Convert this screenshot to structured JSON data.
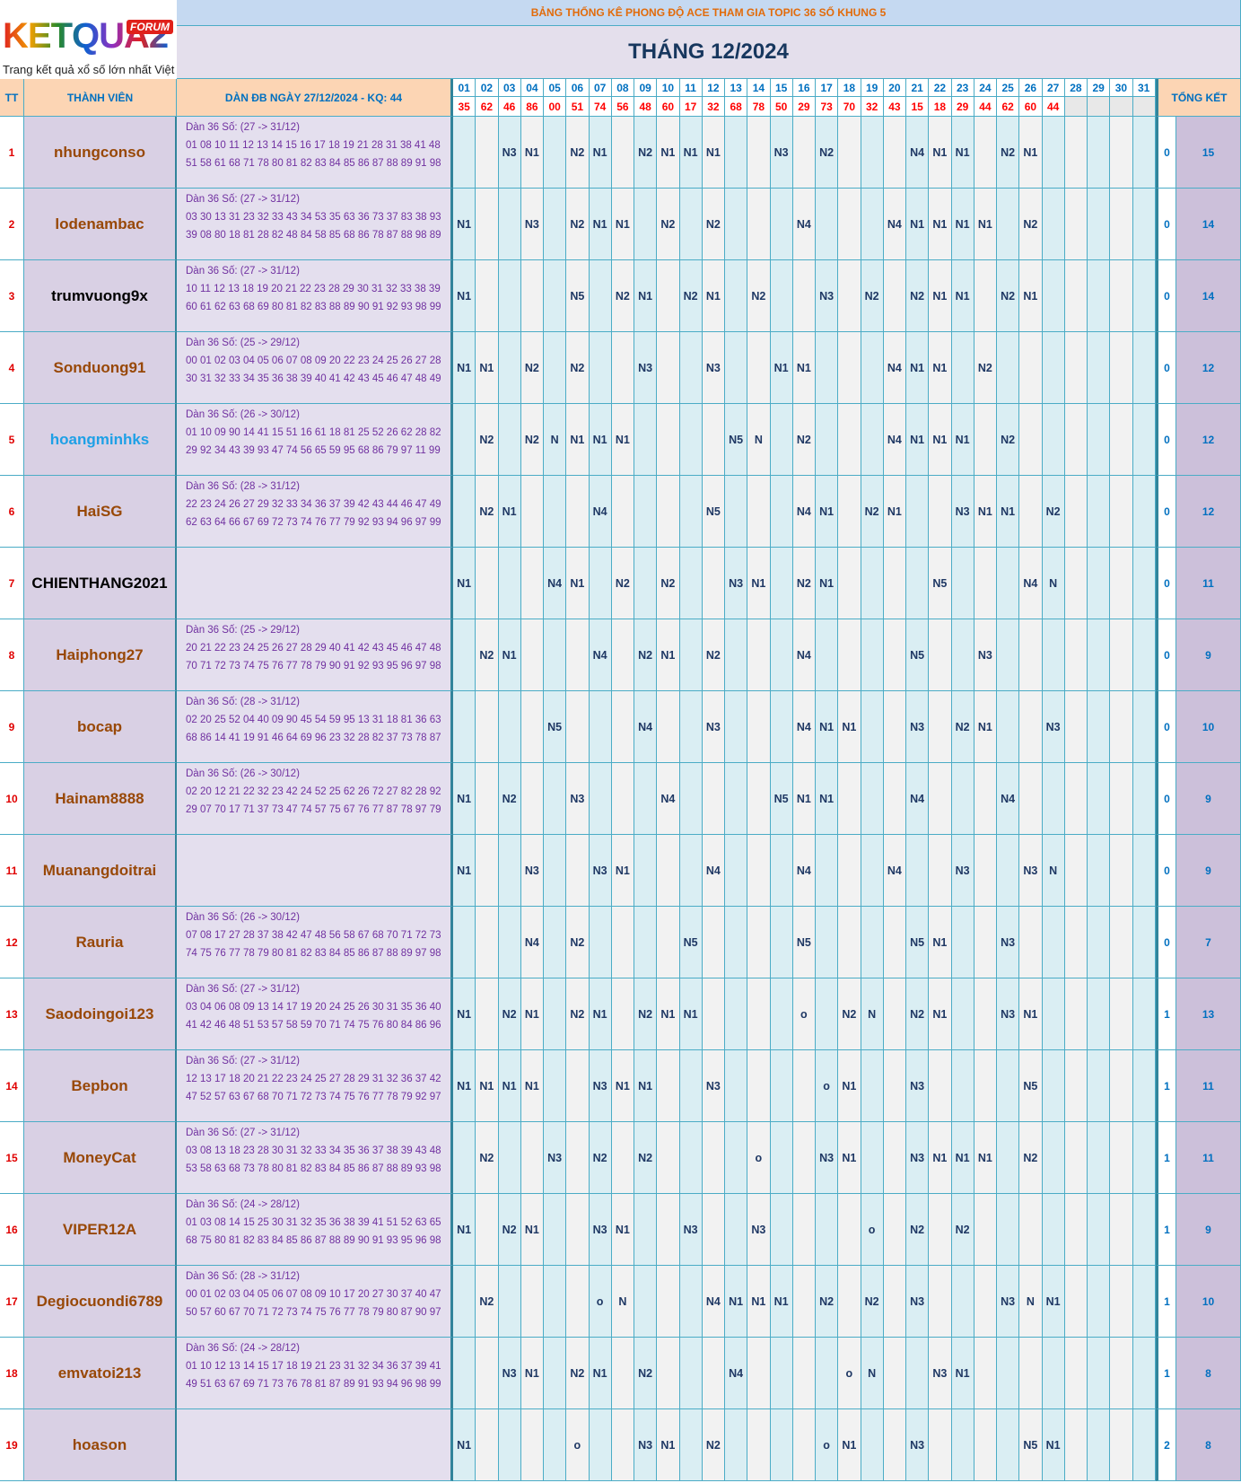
{
  "logo": {
    "text": "KETQUA2",
    "badge": "FORUM",
    "tagline": "Trang kết quả xổ số lớn nhất Việt Nam"
  },
  "header": {
    "title": "BẢNG THỐNG KÊ PHONG ĐỘ ACE THAM GIA TOPIC 36 SỐ KHUNG 5",
    "month": "THÁNG 12/2024"
  },
  "table": {
    "columns": {
      "tt": "TT",
      "member": "THÀNH VIÊN",
      "dan": "DÀN ĐB NGÀY 27/12/2024 - KQ: 44",
      "total": "TỔNG KẾT"
    },
    "days": [
      "01",
      "02",
      "03",
      "04",
      "05",
      "06",
      "07",
      "08",
      "09",
      "10",
      "11",
      "12",
      "13",
      "14",
      "15",
      "16",
      "17",
      "18",
      "19",
      "20",
      "21",
      "22",
      "23",
      "24",
      "25",
      "26",
      "27",
      "28",
      "29",
      "30",
      "31"
    ],
    "results": [
      "35",
      "62",
      "46",
      "86",
      "00",
      "51",
      "74",
      "56",
      "48",
      "60",
      "17",
      "32",
      "68",
      "78",
      "50",
      "29",
      "73",
      "70",
      "32",
      "43",
      "15",
      "18",
      "29",
      "44",
      "62",
      "60",
      "44",
      null,
      null,
      null,
      null
    ],
    "rows": [
      {
        "tt": 1,
        "name": "nhungconso",
        "color": "#984807",
        "dan_title": "Dàn 36 Số: (27 -> 31/12)",
        "dan_numbers": "01 08 10 11 12 13 14 15 16 17 18 19 21 28 31 38 41 48 51 58 61 68 71 78 80 81 82 83 84 85 86 87 88 89 91 98",
        "cells": [
          null,
          null,
          "N3",
          "N1",
          null,
          "N2",
          "N1",
          null,
          "N2",
          "N1",
          "N1",
          "N1",
          null,
          null,
          "N3",
          null,
          "N2",
          null,
          null,
          null,
          "N4",
          "N1",
          "N1",
          null,
          "N2",
          "N1",
          null,
          null,
          null,
          null,
          null
        ],
        "score": 0,
        "total": 15
      },
      {
        "tt": 2,
        "name": "lodenambac",
        "color": "#984807",
        "dan_title": "Dàn 36 Số: (27 -> 31/12)",
        "dan_numbers": "03 30 13 31 23 32 33 43 34 53 35 63 36 73 37 83 38 93 39 08 80 18 81 28 82 48 84 58 85 68 86 78 87 88 98 89",
        "cells": [
          "N1",
          null,
          null,
          "N3",
          null,
          "N2",
          "N1",
          "N1",
          null,
          "N2",
          null,
          "N2",
          null,
          null,
          null,
          "N4",
          null,
          null,
          null,
          "N4",
          "N1",
          "N1",
          "N1",
          "N1",
          null,
          "N2",
          null,
          null,
          null,
          null,
          null
        ],
        "score": 0,
        "total": 14
      },
      {
        "tt": 3,
        "name": "trumvuong9x",
        "color": "#000000",
        "dan_title": "Dàn 36 Số: (27 -> 31/12)",
        "dan_numbers": "10 11 12 13 18 19 20 21 22 23 28 29 30 31 32 33 38 39 60 61 62 63 68 69 80 81 82 83 88 89 90 91 92 93 98 99",
        "cells": [
          "N1",
          null,
          null,
          null,
          null,
          "N5",
          null,
          "N2",
          "N1",
          null,
          "N2",
          "N1",
          null,
          "N2",
          null,
          null,
          "N3",
          null,
          "N2",
          null,
          "N2",
          "N1",
          "N1",
          null,
          "N2",
          "N1",
          null,
          null,
          null,
          null,
          null
        ],
        "score": 0,
        "total": 14
      },
      {
        "tt": 4,
        "name": "Sonduong91",
        "color": "#984807",
        "dan_title": "Dàn 36 Số: (25 -> 29/12)",
        "dan_numbers": "00 01 02 03 04 05 06 07 08 09 20 22 23 24 25 26 27 28 30 31 32 33 34 35 36 38 39 40 41 42 43 45 46 47 48 49",
        "cells": [
          "N1",
          "N1",
          null,
          "N2",
          null,
          "N2",
          null,
          null,
          "N3",
          null,
          null,
          "N3",
          null,
          null,
          "N1",
          "N1",
          null,
          null,
          null,
          "N4",
          "N1",
          "N1",
          null,
          "N2",
          null,
          null,
          null,
          null,
          null,
          null,
          null
        ],
        "score": 0,
        "total": 12
      },
      {
        "tt": 5,
        "name": "hoangminhks",
        "color": "#1ea0e6",
        "dan_title": "Dàn 36 Số: (26 -> 30/12)",
        "dan_numbers": "01 10 09 90 14 41 15 51 16 61 18 81 25 52 26 62 28 82 29 92 34 43 39 93 47 74 56 65 59 95 68 86 79 97 11 99",
        "cells": [
          null,
          "N2",
          null,
          "N2",
          "N",
          "N1",
          "N1",
          "N1",
          null,
          null,
          null,
          null,
          "N5",
          "N",
          null,
          "N2",
          null,
          null,
          null,
          "N4",
          "N1",
          "N1",
          "N1",
          null,
          "N2",
          null,
          null,
          null,
          null,
          null,
          null
        ],
        "score": 0,
        "total": 12
      },
      {
        "tt": 6,
        "name": "HaiSG",
        "color": "#984807",
        "dan_title": "Dàn 36 Số: (28 -> 31/12)",
        "dan_numbers": "22 23 24 26 27 29 32 33 34 36 37 39 42 43 44 46 47 49 62 63 64 66 67 69 72 73 74 76 77 79 92 93 94 96 97 99",
        "cells": [
          null,
          "N2",
          "N1",
          null,
          null,
          null,
          "N4",
          null,
          null,
          null,
          null,
          "N5",
          null,
          null,
          null,
          "N4",
          "N1",
          null,
          "N2",
          "N1",
          null,
          null,
          "N3",
          "N1",
          "N1",
          null,
          "N2",
          null,
          null,
          null,
          null
        ],
        "score": 0,
        "total": 12
      },
      {
        "tt": 7,
        "name": "CHIENTHANG2021",
        "color": "#000000",
        "dan_title": null,
        "dan_numbers": null,
        "cells": [
          "N1",
          null,
          null,
          null,
          "N4",
          "N1",
          null,
          "N2",
          null,
          "N2",
          null,
          null,
          "N3",
          "N1",
          null,
          "N2",
          "N1",
          null,
          null,
          null,
          null,
          "N5",
          null,
          null,
          null,
          "N4",
          "N",
          null,
          null,
          null,
          null
        ],
        "score": 0,
        "total": 11
      },
      {
        "tt": 8,
        "name": "Haiphong27",
        "color": "#984807",
        "dan_title": "Dàn 36 Số: (25 -> 29/12)",
        "dan_numbers": "20 21 22 23 24 25 26 27 28 29 40 41 42 43 45 46 47 48 70 71 72 73 74 75 76 77 78 79 90 91 92 93 95 96 97 98",
        "cells": [
          null,
          "N2",
          "N1",
          null,
          null,
          null,
          "N4",
          null,
          "N2",
          "N1",
          null,
          "N2",
          null,
          null,
          null,
          "N4",
          null,
          null,
          null,
          null,
          "N5",
          null,
          null,
          "N3",
          null,
          null,
          null,
          null,
          null,
          null,
          null
        ],
        "score": 0,
        "total": 9
      },
      {
        "tt": 9,
        "name": "bocap",
        "color": "#984807",
        "dan_title": "Dàn 36 Số: (28 -> 31/12)",
        "dan_numbers": "02 20 25 52 04 40 09 90 45 54 59 95 13 31 18 81 36 63 68 86 14 41 19 91 46 64 69 96 23 32 28 82 37 73 78 87",
        "cells": [
          null,
          null,
          null,
          null,
          "N5",
          null,
          null,
          null,
          "N4",
          null,
          null,
          "N3",
          null,
          null,
          null,
          "N4",
          "N1",
          "N1",
          null,
          null,
          "N3",
          null,
          "N2",
          "N1",
          null,
          null,
          "N3",
          null,
          null,
          null,
          null
        ],
        "score": 0,
        "total": 10
      },
      {
        "tt": 10,
        "name": "Hainam8888",
        "color": "#984807",
        "dan_title": "Dàn 36 Số: (26 -> 30/12)",
        "dan_numbers": "02 20 12 21 22 32 23 42 24 52 25 62 26 72 27 82 28 92 29 07 70 17 71 37 73 47 74 57 75 67 76 77 87 78 97 79",
        "cells": [
          "N1",
          null,
          "N2",
          null,
          null,
          "N3",
          null,
          null,
          null,
          "N4",
          null,
          null,
          null,
          null,
          "N5",
          "N1",
          "N1",
          null,
          null,
          null,
          "N4",
          null,
          null,
          null,
          "N4",
          null,
          null,
          null,
          null,
          null,
          null
        ],
        "score": 0,
        "total": 9
      },
      {
        "tt": 11,
        "name": "Muanangdoitrai",
        "color": "#984807",
        "dan_title": null,
        "dan_numbers": null,
        "cells": [
          "N1",
          null,
          null,
          "N3",
          null,
          null,
          "N3",
          "N1",
          null,
          null,
          null,
          "N4",
          null,
          null,
          null,
          "N4",
          null,
          null,
          null,
          "N4",
          null,
          null,
          "N3",
          null,
          null,
          "N3",
          "N",
          null,
          null,
          null,
          null
        ],
        "score": 0,
        "total": 9
      },
      {
        "tt": 12,
        "name": "Rauria",
        "color": "#984807",
        "dan_title": "Dàn 36 Số: (26 -> 30/12)",
        "dan_numbers": "07 08 17 27 28 37 38 42 47 48 56 58 67 68 70 71 72 73 74 75 76 77 78 79 80 81 82 83 84 85 86 87 88 89 97 98",
        "cells": [
          null,
          null,
          null,
          "N4",
          null,
          "N2",
          null,
          null,
          null,
          null,
          "N5",
          null,
          null,
          null,
          null,
          "N5",
          null,
          null,
          null,
          null,
          "N5",
          "N1",
          null,
          null,
          "N3",
          null,
          null,
          null,
          null,
          null,
          null
        ],
        "score": 0,
        "total": 7
      },
      {
        "tt": 13,
        "name": "Saodoingoi123",
        "color": "#984807",
        "dan_title": "Dàn 36 Số: (27 -> 31/12)",
        "dan_numbers": "03 04 06 08 09 13 14 17 19 20 24 25 26 30 31 35 36 40 41 42 46 48 51 53 57 58 59 70 71 74 75 76 80 84 86 96",
        "cells": [
          "N1",
          null,
          "N2",
          "N1",
          null,
          "N2",
          "N1",
          null,
          "N2",
          "N1",
          "N1",
          null,
          null,
          null,
          null,
          "o",
          null,
          "N2",
          "N",
          null,
          "N2",
          "N1",
          null,
          null,
          "N3",
          "N1",
          null,
          null,
          null,
          null,
          null
        ],
        "score": 1,
        "total": 13
      },
      {
        "tt": 14,
        "name": "Bepbon",
        "color": "#984807",
        "dan_title": "Dàn 36 Số: (27 -> 31/12)",
        "dan_numbers": "12 13 17 18 20 21 22 23 24 25 27 28 29 31 32 36 37 42 47 52 57 63 67 68 70 71 72 73 74 75 76 77 78 79 92 97",
        "cells": [
          "N1",
          "N1",
          "N1",
          "N1",
          null,
          null,
          "N3",
          "N1",
          "N1",
          null,
          null,
          "N3",
          null,
          null,
          null,
          null,
          "o",
          "N1",
          null,
          null,
          "N3",
          null,
          null,
          null,
          null,
          "N5",
          null,
          null,
          null,
          null,
          null
        ],
        "score": 1,
        "total": 11
      },
      {
        "tt": 15,
        "name": "MoneyCat",
        "color": "#984807",
        "dan_title": "Dàn 36 Số: (27 -> 31/12)",
        "dan_numbers": "03 08 13 18 23 28 30 31 32 33 34 35 36 37 38 39 43 48 53 58 63 68 73 78 80 81 82 83 84 85 86 87 88 89 93 98",
        "cells": [
          null,
          "N2",
          null,
          null,
          "N3",
          null,
          "N2",
          null,
          "N2",
          null,
          null,
          null,
          null,
          "o",
          null,
          null,
          "N3",
          "N1",
          null,
          null,
          "N3",
          "N1",
          "N1",
          "N1",
          null,
          "N2",
          null,
          null,
          null,
          null,
          null
        ],
        "score": 1,
        "total": 11
      },
      {
        "tt": 16,
        "name": "VIPER12A",
        "color": "#984807",
        "dan_title": "Dàn 36 Số: (24 -> 28/12)",
        "dan_numbers": "01 03 08 14 15 25 30 31 32 35 36 38 39 41 51 52 63 65 68 75 80 81 82 83 84 85 86 87 88 89 90 91 93 95 96 98",
        "cells": [
          "N1",
          null,
          "N2",
          "N1",
          null,
          null,
          "N3",
          "N1",
          null,
          null,
          "N3",
          null,
          null,
          "N3",
          null,
          null,
          null,
          null,
          "o",
          null,
          "N2",
          null,
          "N2",
          null,
          null,
          null,
          null,
          null,
          null,
          null,
          null
        ],
        "score": 1,
        "total": 9
      },
      {
        "tt": 17,
        "name": "Degiocuondi6789",
        "color": "#984807",
        "dan_title": "Dàn 36 Số: (28 -> 31/12)",
        "dan_numbers": "00 01 02 03 04 05 06 07 08 09 10 17 20 27 30 37 40 47 50 57 60 67 70 71 72 73 74 75 76 77 78 79 80 87 90 97",
        "cells": [
          null,
          "N2",
          null,
          null,
          null,
          null,
          "o",
          "N",
          null,
          null,
          null,
          "N4",
          "N1",
          "N1",
          "N1",
          null,
          "N2",
          null,
          "N2",
          null,
          "N3",
          null,
          null,
          null,
          "N3",
          "N",
          "N1",
          null,
          null,
          null,
          null
        ],
        "score": 1,
        "total": 10
      },
      {
        "tt": 18,
        "name": "emvatoi213",
        "color": "#984807",
        "dan_title": "Dàn 36 Số: (24 -> 28/12)",
        "dan_numbers": "01 10 12 13 14 15 17 18 19 21 23 31 32 34 36 37 39 41 49 51 63 67 69 71 73 76 78 81 87 89 91 93 94 96 98 99",
        "cells": [
          null,
          null,
          "N3",
          "N1",
          null,
          "N2",
          "N1",
          null,
          "N2",
          null,
          null,
          null,
          "N4",
          null,
          null,
          null,
          null,
          "o",
          "N",
          null,
          null,
          "N3",
          "N1",
          null,
          null,
          null,
          null,
          null,
          null,
          null,
          null
        ],
        "score": 1,
        "total": 8
      },
      {
        "tt": 19,
        "name": "hoason",
        "color": "#984807",
        "dan_title": null,
        "dan_numbers": null,
        "cells": [
          "N1",
          null,
          null,
          null,
          null,
          "o",
          null,
          null,
          "N3",
          "N1",
          null,
          "N2",
          null,
          null,
          null,
          null,
          "o",
          "N1",
          null,
          null,
          "N3",
          null,
          null,
          null,
          null,
          "N5",
          "N1",
          null,
          null,
          null,
          null
        ],
        "score": 2,
        "total": 8
      }
    ]
  }
}
